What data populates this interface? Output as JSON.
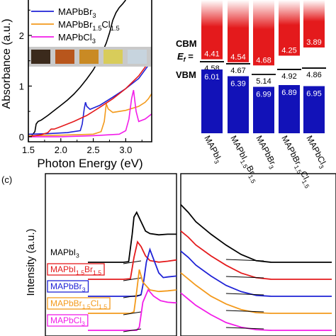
{
  "panel_c_label": "(c)",
  "colors": {
    "mapbi3": "#000000",
    "mapbi15br15": "#e41a1c",
    "mapbbr3": "#1f22d6",
    "mapbbr15cl15": "#f39a1c",
    "mapbcl3": "#f21ce8",
    "cbm_top": "#e41a1c",
    "cbm_bottom": "#ffffff",
    "vbm": "#1212b8"
  },
  "chart_data": [
    {
      "type": "line",
      "panel": "a",
      "xlabel": "Photon Energy (eV)",
      "ylabel": "Absorbance (a.u.)",
      "xlim": [
        1.5,
        3.4
      ],
      "ylim": [
        -0.1,
        2.7
      ],
      "xticks": [
        "1.5",
        "2.0",
        "2.5",
        "3.0"
      ],
      "yticks": [
        "0",
        "1",
        "2"
      ],
      "legend_position": "top-left",
      "series": [
        {
          "key": "mapbi3",
          "name": "MAPbI3",
          "x": [
            1.5,
            1.55,
            1.6,
            1.62,
            1.65,
            1.7,
            1.8,
            1.9,
            2.0,
            2.1,
            2.2,
            2.3,
            2.4,
            2.5,
            2.6,
            2.7,
            2.75,
            2.8,
            2.85,
            2.9,
            2.95,
            3.0
          ],
          "y": [
            0.0,
            0.02,
            0.1,
            0.25,
            0.3,
            0.33,
            0.42,
            0.52,
            0.62,
            0.72,
            0.84,
            0.98,
            1.14,
            1.32,
            1.55,
            1.85,
            2.05,
            2.3,
            2.45,
            2.55,
            2.62,
            2.7
          ]
        },
        {
          "key": "mapbbr3",
          "name": "MAPbBr3",
          "x": [
            1.5,
            1.8,
            2.1,
            2.3,
            2.33,
            2.36,
            2.38,
            2.4,
            2.45,
            2.6,
            2.8,
            3.0,
            3.2,
            3.4
          ],
          "y": [
            0.05,
            0.06,
            0.08,
            0.12,
            0.25,
            0.55,
            0.68,
            0.6,
            0.54,
            0.62,
            0.78,
            0.95,
            1.15,
            1.5
          ]
        },
        {
          "key": "mapbbr15cl15",
          "name": "MAPbBr1.5Cl1.5",
          "x": [
            1.5,
            2.0,
            2.5,
            2.62,
            2.67,
            2.7,
            2.73,
            2.8,
            3.0,
            3.2,
            3.3,
            3.35,
            3.4
          ],
          "y": [
            0.02,
            0.03,
            0.05,
            0.1,
            0.3,
            0.65,
            0.55,
            0.48,
            0.52,
            0.6,
            0.68,
            0.75,
            0.85
          ]
        },
        {
          "key": "mapbcl3",
          "name": "MAPbCl3",
          "x": [
            1.5,
            2.0,
            2.5,
            2.9,
            3.0,
            3.05,
            3.09,
            3.12,
            3.16,
            3.2,
            3.3,
            3.4
          ],
          "y": [
            0.0,
            0.0,
            0.02,
            0.05,
            0.12,
            0.35,
            0.75,
            0.92,
            0.5,
            0.3,
            0.35,
            0.45
          ]
        },
        {
          "key": "mapbi15br15",
          "name": "MAPbI1.5Br1.5",
          "x": [
            1.5,
            1.6,
            1.7,
            1.8,
            1.85,
            1.9,
            2.0,
            2.2,
            2.4,
            2.6,
            2.8,
            3.0,
            3.2,
            3.4
          ],
          "y": [
            0.0,
            0.02,
            0.04,
            0.08,
            0.15,
            0.15,
            0.2,
            0.3,
            0.42,
            0.58,
            0.75,
            0.95,
            1.2,
            1.55
          ]
        }
      ]
    },
    {
      "type": "bar",
      "panel": "b",
      "row_labels": {
        "cbm": "CBM",
        "ef": "E",
        "ef_sub": "f",
        "ef_suffix": " =",
        "vbm": "VBM"
      },
      "categories": [
        {
          "base": "MAPbI",
          "sub1": "3",
          "mid": "",
          "sub2": ""
        },
        {
          "base": "MAPbI",
          "sub1": "1.5",
          "mid": "Br",
          "sub2": "1.5"
        },
        {
          "base": "MAPbBr",
          "sub1": "3",
          "mid": "",
          "sub2": ""
        },
        {
          "base": "MAPbBr",
          "sub1": "1.5",
          "mid": "Cl",
          "sub2": "1.5"
        },
        {
          "base": "MAPbCl",
          "sub1": "3",
          "mid": "",
          "sub2": ""
        }
      ],
      "cbm": [
        "4.41",
        "4.54",
        "4.68",
        "4.25",
        "3.89"
      ],
      "ef": [
        "4.58",
        "4.67",
        "5.14",
        "4.92",
        "4.86"
      ],
      "vbm": [
        "6.01",
        "6.39",
        "6.99",
        "6.89",
        "6.95"
      ]
    },
    {
      "type": "line",
      "panel": "c",
      "ylabel": "Intensity (a.u.)",
      "left_xlim": [
        0,
        1
      ],
      "right_xlim": [
        0,
        1
      ],
      "series": [
        {
          "key": "mapbi3",
          "name": "MAPbI3",
          "offset": 4,
          "left_x": [
            0.0,
            0.4,
            0.46,
            0.5,
            0.52,
            0.55,
            0.6,
            0.65,
            0.7,
            0.8,
            0.9,
            1.0
          ],
          "left_y": [
            0.0,
            0.0,
            0.02,
            0.9,
            1.45,
            1.6,
            1.3,
            1.0,
            0.92,
            0.88,
            0.9,
            0.9
          ],
          "right_x": [
            0.0,
            0.05,
            0.1,
            0.2,
            0.3,
            0.4,
            0.5,
            0.6,
            0.8,
            1.0
          ],
          "right_y": [
            1.85,
            1.6,
            1.3,
            0.9,
            0.55,
            0.25,
            0.05,
            0.0,
            0.0,
            0.0
          ]
        },
        {
          "key": "mapbi15br15",
          "name": "MAPbI1.5Br1.5",
          "offset": 3,
          "left_x": [
            0.0,
            0.4,
            0.48,
            0.52,
            0.56,
            0.6,
            0.65,
            0.7,
            0.8,
            0.9,
            1.0
          ],
          "left_y": [
            0.0,
            0.0,
            0.02,
            0.7,
            1.2,
            1.05,
            0.75,
            0.6,
            0.55,
            0.58,
            0.62
          ],
          "right_x": [
            0.0,
            0.05,
            0.1,
            0.2,
            0.3,
            0.4,
            0.5,
            0.6,
            0.8,
            1.0
          ],
          "right_y": [
            1.55,
            1.35,
            1.1,
            0.75,
            0.45,
            0.2,
            0.05,
            0.0,
            0.0,
            0.0
          ]
        },
        {
          "key": "mapbbr3",
          "name": "MAPbBr3",
          "offset": 2,
          "left_x": [
            0.0,
            0.55,
            0.6,
            0.63,
            0.66,
            0.7,
            0.74,
            0.8,
            0.85,
            0.9,
            1.0
          ],
          "left_y": [
            0.0,
            0.0,
            0.05,
            0.5,
            1.1,
            1.5,
            1.2,
            0.75,
            0.6,
            0.62,
            0.65
          ],
          "right_x": [
            0.0,
            0.05,
            0.1,
            0.2,
            0.3,
            0.4,
            0.5,
            0.6,
            0.8,
            1.0
          ],
          "right_y": [
            1.45,
            1.25,
            1.0,
            0.65,
            0.35,
            0.15,
            0.03,
            0.0,
            0.0,
            0.0
          ]
        },
        {
          "key": "mapbbr15cl15",
          "name": "MAPbBr1.5Cl1.5",
          "offset": 1,
          "left_x": [
            0.0,
            0.48,
            0.52,
            0.55,
            0.58,
            0.62,
            0.7,
            0.8,
            0.9,
            1.0
          ],
          "left_y": [
            0.0,
            0.0,
            0.05,
            0.7,
            1.4,
            1.0,
            0.75,
            0.7,
            0.72,
            0.75
          ],
          "right_x": [
            0.0,
            0.05,
            0.1,
            0.2,
            0.3,
            0.4,
            0.5,
            0.6,
            0.8,
            1.0
          ],
          "right_y": [
            1.3,
            1.1,
            0.9,
            0.55,
            0.3,
            0.12,
            0.02,
            0.0,
            0.0,
            0.0
          ]
        },
        {
          "key": "mapbcl3",
          "name": "MAPbCl3",
          "offset": 0,
          "left_x": [
            0.0,
            0.55,
            0.58,
            0.62,
            0.68,
            0.74,
            0.82,
            0.9,
            1.0
          ],
          "left_y": [
            0.0,
            0.0,
            0.1,
            0.9,
            1.3,
            1.1,
            0.95,
            0.9,
            0.88
          ],
          "right_x": [
            0.0,
            0.05,
            0.1,
            0.2,
            0.3,
            0.4,
            0.5,
            0.6,
            0.8,
            1.0
          ],
          "right_y": [
            1.2,
            1.0,
            0.8,
            0.5,
            0.25,
            0.1,
            0.02,
            0.0,
            0.0,
            0.0
          ]
        }
      ]
    }
  ]
}
